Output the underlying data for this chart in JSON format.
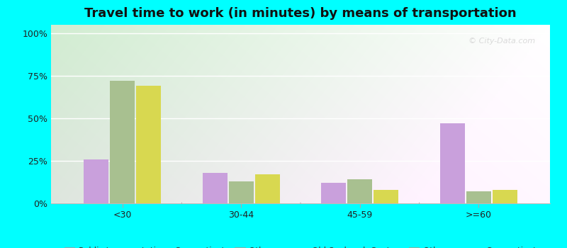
{
  "title": "Travel time to work (in minutes) by means of transportation",
  "categories": [
    "<30",
    "30-44",
    "45-59",
    ">=60"
  ],
  "series": {
    "Public transportation - Connecticut": [
      26,
      18,
      12,
      47
    ],
    "Other means - Old Saybrook Center": [
      72,
      13,
      14,
      7
    ],
    "Other means - Connecticut": [
      69,
      17,
      8,
      8
    ]
  },
  "colors": {
    "Public transportation - Connecticut": "#c9a0dc",
    "Other means - Old Saybrook Center": "#a8c090",
    "Other means - Connecticut": "#d8d850"
  },
  "legend_colors": {
    "Public transportation - Connecticut": "#d8a8e0",
    "Other means - Old Saybrook Center": "#c0d4a8",
    "Other means - Connecticut": "#e8e860"
  },
  "yticks": [
    0,
    25,
    50,
    75,
    100
  ],
  "ytick_labels": [
    "0%",
    "25%",
    "50%",
    "75%",
    "100%"
  ],
  "ylim": [
    0,
    105
  ],
  "outer_bg": "#00ffff",
  "bar_width": 0.22,
  "title_fontsize": 13,
  "tick_fontsize": 9,
  "legend_fontsize": 8.5
}
